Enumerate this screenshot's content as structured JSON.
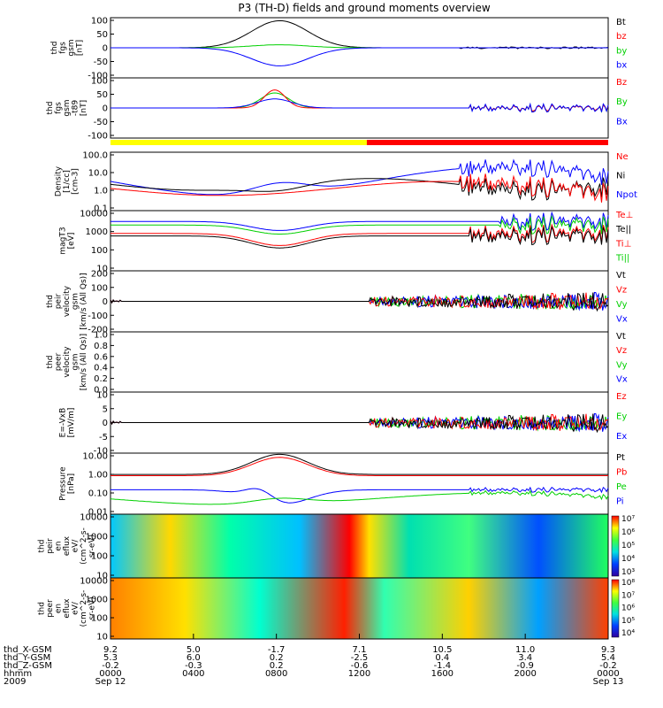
{
  "title": "P3 (TH-D) fields and ground moments overview",
  "colors": {
    "black": "#000000",
    "red": "#ff0000",
    "green": "#00d000",
    "blue": "#0000ff",
    "yellow": "#ffff00"
  },
  "chart_data": {
    "type": "line",
    "x_ticks": [
      {
        "x": "9.2",
        "y": "5.3",
        "z": "-0.2",
        "time": "0000",
        "date": "Sep 12"
      },
      {
        "x": "5.0",
        "y": "6.0",
        "z": "-0.3",
        "time": "0400",
        "date": ""
      },
      {
        "x": "-1.7",
        "y": "0.2",
        "z": "0.2",
        "time": "0800",
        "date": ""
      },
      {
        "x": "7.1",
        "y": "-2.5",
        "z": "-0.6",
        "time": "1200",
        "date": ""
      },
      {
        "x": "10.5",
        "y": "0.4",
        "z": "-1.4",
        "time": "1600",
        "date": ""
      },
      {
        "x": "11.0",
        "y": "3.4",
        "z": "-0.9",
        "time": "2000",
        "date": ""
      },
      {
        "x": "9.3",
        "y": "5.4",
        "z": "-0.2",
        "time": "0000",
        "date": "Sep 13"
      }
    ],
    "x_row_labels": [
      "thd_X-GSM",
      "thd_Y-GSM",
      "thd_Z-GSM",
      "hhmm",
      "2009"
    ],
    "panels": [
      {
        "ylabel": [
          "thd",
          "fgs",
          "gsm",
          "[nT]"
        ],
        "ticks": [
          "100",
          "50",
          "0",
          "-50",
          "-100"
        ],
        "legend": [
          {
            "t": "Bt",
            "c": "black"
          },
          {
            "t": "bz",
            "c": "red"
          },
          {
            "t": "by",
            "c": "green"
          },
          {
            "t": "bx",
            "c": "blue"
          }
        ]
      },
      {
        "ylabel": [
          "thd",
          "fgs",
          "gsm",
          "-t89",
          "[nT]"
        ],
        "ticks": [
          "100",
          "50",
          "0",
          "-50",
          "-100"
        ],
        "legend": [
          {
            "t": "Bz",
            "c": "red"
          },
          {
            "t": "By",
            "c": "green"
          },
          {
            "t": "Bx",
            "c": "blue"
          }
        ]
      },
      {
        "ylabel": [
          "Density",
          "[1/cc]",
          "[cm-3]"
        ],
        "ticks": [
          "100.0",
          "10.0",
          "1.0",
          "0.1"
        ],
        "legend": [
          {
            "t": "Ne",
            "c": "red"
          },
          {
            "t": "Ni",
            "c": "black"
          },
          {
            "t": "Npot",
            "c": "blue"
          }
        ]
      },
      {
        "ylabel": [
          "magT3",
          "[eV]"
        ],
        "ticks": [
          "10000",
          "1000",
          "100",
          "10"
        ],
        "legend": [
          {
            "t": "Te⊥",
            "c": "red"
          },
          {
            "t": "Te||",
            "c": "black"
          },
          {
            "t": "Ti⊥",
            "c": "red"
          },
          {
            "t": "Ti||",
            "c": "green"
          }
        ]
      },
      {
        "ylabel": [
          "thd",
          "peir",
          "velocity",
          "gsm",
          "[km/s (All Qs)]"
        ],
        "ticks": [
          "200",
          "100",
          "0",
          "-100",
          "-200"
        ],
        "legend": [
          {
            "t": "Vt",
            "c": "black"
          },
          {
            "t": "Vz",
            "c": "red"
          },
          {
            "t": "Vy",
            "c": "green"
          },
          {
            "t": "Vx",
            "c": "blue"
          }
        ]
      },
      {
        "ylabel": [
          "thd",
          "peer",
          "velocity",
          "gsm",
          "[km/s (All Qs)]"
        ],
        "ticks": [
          "1.0",
          "0.8",
          "0.6",
          "0.4",
          "0.2",
          "0.0"
        ],
        "legend": [
          {
            "t": "Vt",
            "c": "black"
          },
          {
            "t": "Vz",
            "c": "red"
          },
          {
            "t": "Vy",
            "c": "green"
          },
          {
            "t": "Vx",
            "c": "blue"
          }
        ]
      },
      {
        "ylabel": [
          "E=-VxB",
          "[mV/m]"
        ],
        "ticks": [
          "10",
          "5",
          "0",
          "-5",
          "-10"
        ],
        "legend": [
          {
            "t": "Ez",
            "c": "red"
          },
          {
            "t": "Ey",
            "c": "green"
          },
          {
            "t": "Ex",
            "c": "blue"
          }
        ]
      },
      {
        "ylabel": [
          "Pressure",
          "[nPa]"
        ],
        "ticks": [
          "10.00",
          "1.00",
          "0.10",
          "0.01"
        ],
        "legend": [
          {
            "t": "Pt",
            "c": "black"
          },
          {
            "t": "Pb",
            "c": "red"
          },
          {
            "t": "Pe",
            "c": "green"
          },
          {
            "t": "Pi",
            "c": "blue"
          }
        ]
      },
      {
        "ylabel": [
          "thd",
          "peir",
          "en",
          "eflux",
          "eV/",
          "(cm^2-s-",
          "sr-eV)"
        ],
        "ticks": [
          "10000",
          "1000",
          "100",
          "10"
        ],
        "cbar": [
          "10⁷",
          "10⁶",
          "10⁵",
          "10⁴",
          "10³"
        ]
      },
      {
        "ylabel": [
          "thd",
          "peer",
          "en",
          "eflux",
          "eV/",
          "(cm^2-s-",
          "sr-eV)"
        ],
        "ticks": [
          "10000",
          "1000",
          "100",
          "10"
        ],
        "cbar": [
          "10⁸",
          "10⁷",
          "10⁶",
          "10⁵",
          "10⁴"
        ]
      }
    ]
  }
}
